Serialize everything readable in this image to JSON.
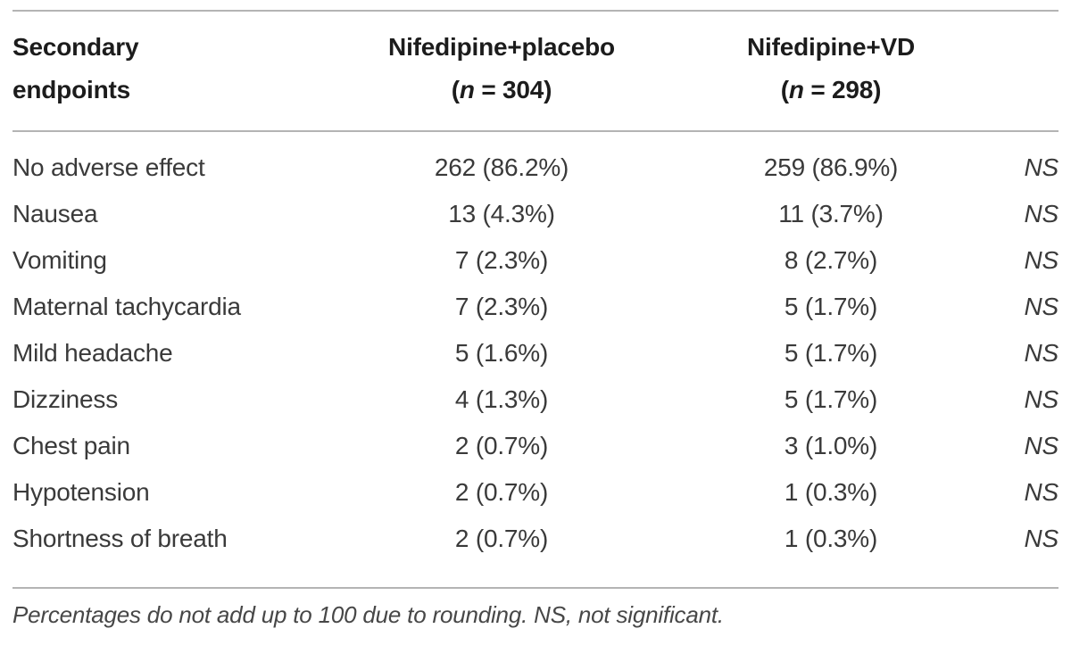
{
  "table": {
    "header": {
      "endpoint_column": "Secondary endpoints",
      "groups": [
        {
          "name": "Nifedipine+placebo",
          "n_open": "(",
          "n_symbol": "n",
          "n_rest": " = 304)"
        },
        {
          "name": "Nifedipine+VD",
          "n_open": "(",
          "n_symbol": "n",
          "n_rest": " = 298)"
        }
      ]
    },
    "rows": [
      {
        "endpoint": "No adverse effect",
        "placebo": "262 (86.2%)",
        "vd": "259 (86.9%)",
        "significance": "NS"
      },
      {
        "endpoint": "Nausea",
        "placebo": "13 (4.3%)",
        "vd": "11 (3.7%)",
        "significance": "NS"
      },
      {
        "endpoint": "Vomiting",
        "placebo": "7 (2.3%)",
        "vd": "8 (2.7%)",
        "significance": "NS"
      },
      {
        "endpoint": "Maternal tachycardia",
        "placebo": "7 (2.3%)",
        "vd": "5 (1.7%)",
        "significance": "NS"
      },
      {
        "endpoint": "Mild headache",
        "placebo": "5 (1.6%)",
        "vd": "5 (1.7%)",
        "significance": "NS"
      },
      {
        "endpoint": "Dizziness",
        "placebo": "4 (1.3%)",
        "vd": "5 (1.7%)",
        "significance": "NS"
      },
      {
        "endpoint": "Chest pain",
        "placebo": "2 (0.7%)",
        "vd": "3 (1.0%)",
        "significance": "NS"
      },
      {
        "endpoint": "Hypotension",
        "placebo": "2 (0.7%)",
        "vd": "1 (0.3%)",
        "significance": "NS"
      },
      {
        "endpoint": "Shortness of breath",
        "placebo": "2 (0.7%)",
        "vd": "1 (0.3%)",
        "significance": "NS"
      }
    ],
    "footnote": "Percentages do not add up to 100 due to rounding. NS, not significant."
  },
  "colors": {
    "background": "#ffffff",
    "rule": "#b4b4b4",
    "header_text": "#1c1c1c",
    "body_text": "#3a3a3a",
    "footnote_text": "#474747"
  }
}
